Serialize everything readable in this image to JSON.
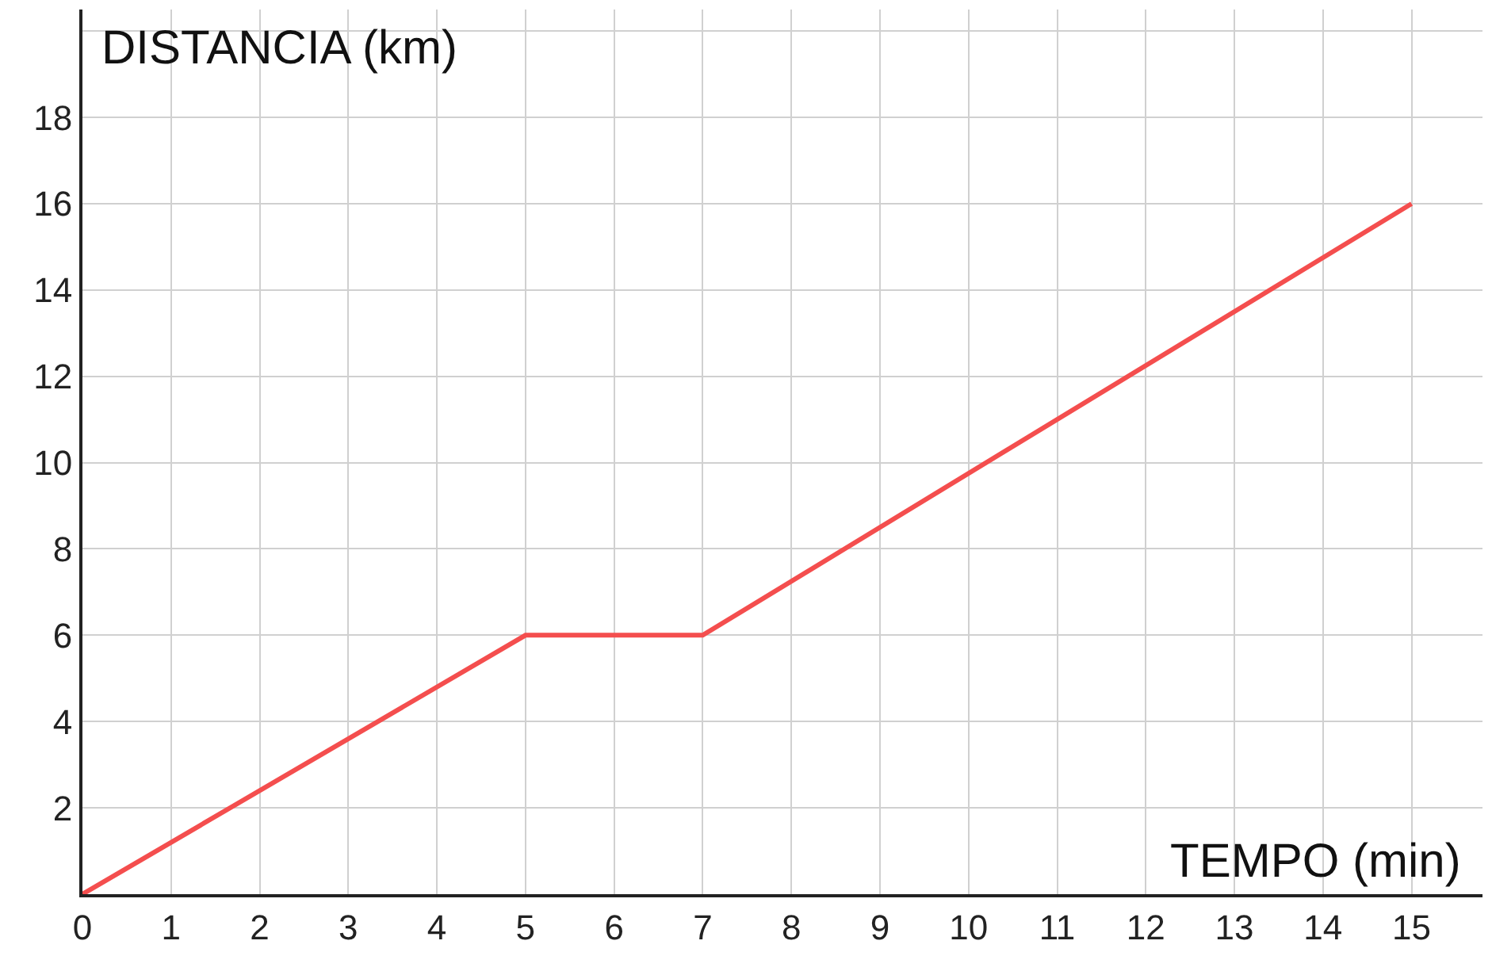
{
  "chart_data": {
    "type": "line",
    "xlabel": "TEMPO (min)",
    "ylabel": "DISTANCIA (km)",
    "x": [
      0,
      5,
      7,
      15
    ],
    "series": [
      {
        "color": "#f44e4e",
        "values": [
          0,
          6,
          6,
          16
        ]
      }
    ],
    "xlim": [
      0,
      15.8
    ],
    "ylim": [
      0,
      20.5
    ],
    "xticks": [
      0,
      1,
      2,
      3,
      4,
      5,
      6,
      7,
      8,
      9,
      10,
      11,
      12,
      13,
      14,
      15
    ],
    "yticks": [
      2,
      4,
      6,
      8,
      10,
      12,
      14,
      16,
      18,
      {
        "value": 20,
        "label": null
      }
    ],
    "grid": true,
    "marker": "none",
    "line_style": "solid",
    "legend": false
  }
}
